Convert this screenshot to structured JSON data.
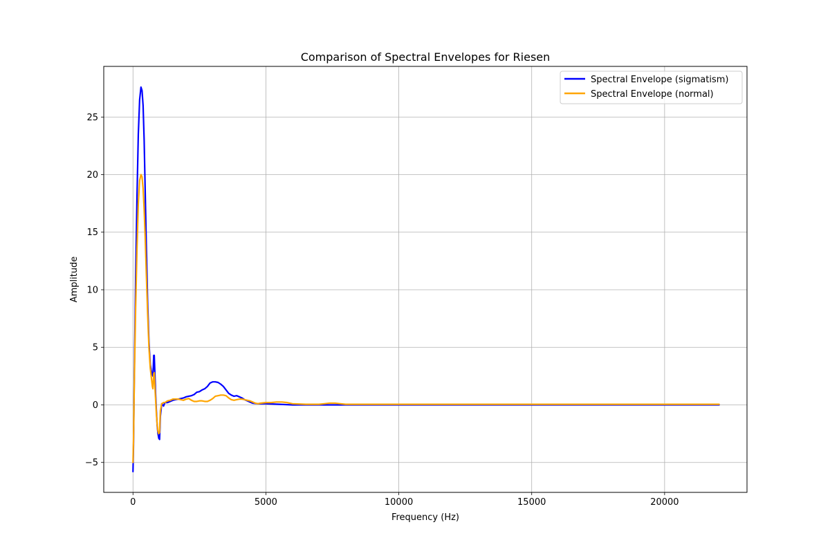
{
  "chart_data": {
    "type": "line",
    "title": "Comparison of Spectral Envelopes for Riesen",
    "xlabel": "Frequency (Hz)",
    "ylabel": "Amplitude",
    "xlim": [
      -1100,
      23100
    ],
    "ylim": [
      -7.6,
      29.4
    ],
    "xticks": [
      0,
      5000,
      10000,
      15000,
      20000
    ],
    "xtick_labels": [
      "0",
      "5000",
      "10000",
      "15000",
      "20000"
    ],
    "yticks": [
      -5,
      0,
      5,
      10,
      15,
      20,
      25
    ],
    "ytick_labels": [
      "−5",
      "0",
      "5",
      "10",
      "15",
      "20",
      "25"
    ],
    "grid": true,
    "legend_position": "top-right",
    "series": [
      {
        "name": "Spectral Envelope (sigmatism)",
        "color": "#0000ff",
        "x": [
          0,
          20,
          50,
          100,
          150,
          200,
          250,
          300,
          340,
          380,
          420,
          460,
          500,
          550,
          600,
          650,
          700,
          750,
          780,
          800,
          820,
          850,
          880,
          910,
          940,
          970,
          1000,
          1030,
          1080,
          1150,
          1200,
          1300,
          1400,
          1500,
          1600,
          1700,
          1800,
          1900,
          2000,
          2100,
          2200,
          2300,
          2400,
          2500,
          2600,
          2700,
          2800,
          2900,
          3000,
          3100,
          3200,
          3300,
          3400,
          3500,
          3600,
          3700,
          3800,
          3900,
          4000,
          4100,
          4200,
          4300,
          4400,
          4500,
          4700,
          5000,
          5500,
          6000,
          6500,
          7000,
          7500,
          8000,
          9000,
          10000,
          12000,
          15000,
          18000,
          20000,
          22050
        ],
        "y": [
          -5.8,
          -3.5,
          2.5,
          11.0,
          18.0,
          23.5,
          26.5,
          27.6,
          27.3,
          26.0,
          23.0,
          18.5,
          14.0,
          9.0,
          5.5,
          3.5,
          2.8,
          2.5,
          4.3,
          4.3,
          3.0,
          1.0,
          -0.5,
          -1.8,
          -2.5,
          -2.9,
          -3.0,
          -1.0,
          0.1,
          -0.1,
          0.2,
          0.2,
          0.3,
          0.4,
          0.45,
          0.5,
          0.55,
          0.6,
          0.7,
          0.75,
          0.8,
          0.9,
          1.1,
          1.15,
          1.3,
          1.4,
          1.6,
          1.9,
          2.0,
          2.0,
          1.95,
          1.8,
          1.6,
          1.3,
          1.0,
          0.85,
          0.75,
          0.8,
          0.7,
          0.6,
          0.45,
          0.35,
          0.25,
          0.15,
          0.1,
          0.1,
          0.05,
          0.0,
          0.0,
          0.0,
          0.0,
          0.0,
          0.0,
          0.0,
          0.0,
          0.0,
          0.0,
          0.0,
          0.0
        ]
      },
      {
        "name": "Spectral Envelope (normal)",
        "color": "#ffa500",
        "x": [
          0,
          20,
          50,
          100,
          150,
          200,
          250,
          300,
          340,
          380,
          420,
          460,
          500,
          550,
          600,
          650,
          700,
          730,
          750,
          780,
          800,
          820,
          850,
          880,
          910,
          940,
          970,
          1000,
          1030,
          1080,
          1150,
          1200,
          1300,
          1400,
          1500,
          1600,
          1700,
          1800,
          1900,
          2000,
          2100,
          2200,
          2300,
          2400,
          2500,
          2600,
          2700,
          2800,
          2900,
          3000,
          3100,
          3200,
          3300,
          3400,
          3500,
          3600,
          3700,
          3800,
          3900,
          4000,
          4100,
          4200,
          4300,
          4400,
          4500,
          4600,
          4700,
          4800,
          5000,
          5200,
          5400,
          5600,
          5800,
          6000,
          6500,
          7000,
          7200,
          7400,
          7600,
          7800,
          8000,
          9000,
          10000,
          12000,
          15000,
          18000,
          20000,
          22050
        ],
        "y": [
          -5.0,
          -3.0,
          2.0,
          8.5,
          13.5,
          17.5,
          19.5,
          20.0,
          19.8,
          18.8,
          17.0,
          14.5,
          11.5,
          8.0,
          5.0,
          3.2,
          2.2,
          1.6,
          1.4,
          2.7,
          2.8,
          1.8,
          0.5,
          -0.8,
          -1.7,
          -2.3,
          -2.5,
          -2.4,
          -0.5,
          0.1,
          0.2,
          0.2,
          0.35,
          0.4,
          0.5,
          0.5,
          0.5,
          0.45,
          0.4,
          0.5,
          0.55,
          0.4,
          0.3,
          0.3,
          0.35,
          0.35,
          0.3,
          0.3,
          0.4,
          0.55,
          0.75,
          0.8,
          0.85,
          0.85,
          0.8,
          0.6,
          0.45,
          0.4,
          0.45,
          0.5,
          0.5,
          0.45,
          0.4,
          0.35,
          0.25,
          0.15,
          0.1,
          0.15,
          0.2,
          0.2,
          0.25,
          0.25,
          0.2,
          0.1,
          0.05,
          0.05,
          0.1,
          0.15,
          0.15,
          0.1,
          0.05,
          0.05,
          0.05,
          0.05,
          0.05,
          0.05,
          0.05,
          0.05
        ]
      }
    ]
  }
}
